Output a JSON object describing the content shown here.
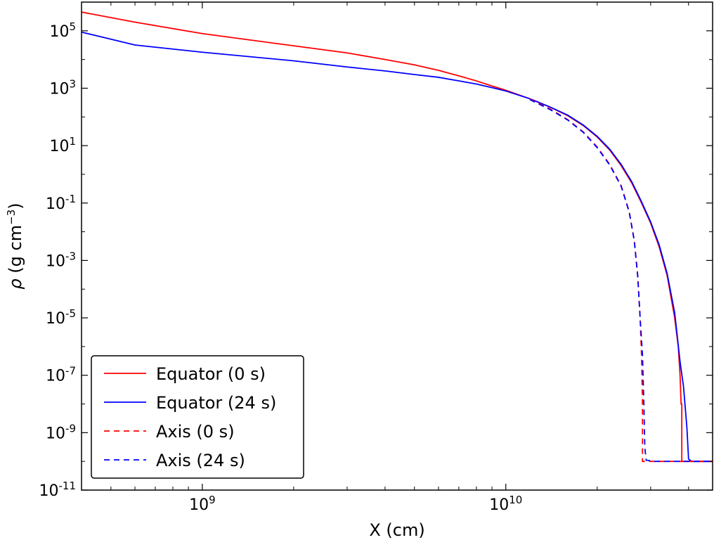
{
  "chart_data": {
    "type": "line",
    "xlabel": "X (cm)",
    "ylabel_symbol": "ρ",
    "ylabel_unit": " (g cm",
    "ylabel_exp": "−3",
    "ylabel_close": ")",
    "xscale": "log",
    "yscale": "log",
    "xlim": [
      400000000.0,
      48000000000.0
    ],
    "ylim": [
      1e-11,
      1000000.0
    ],
    "x_ticks": [
      {
        "value": 1000000000.0,
        "base": "10",
        "exp": "9"
      },
      {
        "value": 10000000000.0,
        "base": "10",
        "exp": "10"
      }
    ],
    "y_ticks": [
      {
        "value": 100000.0,
        "base": "10",
        "exp": "5"
      },
      {
        "value": 1000.0,
        "base": "10",
        "exp": "3"
      },
      {
        "value": 10.0,
        "base": "10",
        "exp": "1"
      },
      {
        "value": 0.1,
        "base": "10",
        "exp": "-1"
      },
      {
        "value": 0.001,
        "base": "10",
        "exp": "-3"
      },
      {
        "value": 1e-05,
        "base": "10",
        "exp": "-5"
      },
      {
        "value": 1e-07,
        "base": "10",
        "exp": "-7"
      },
      {
        "value": 1e-09,
        "base": "10",
        "exp": "-9"
      },
      {
        "value": 1e-11,
        "base": "10",
        "exp": "-11"
      }
    ],
    "grid": false,
    "legend_position": "lower-left",
    "series": [
      {
        "name": "Equator (0 s)",
        "color": "#ff0000",
        "dash": "solid",
        "points": [
          [
            400000000.0,
            450000.0
          ],
          [
            600000000.0,
            200000.0
          ],
          [
            1000000000.0,
            80000.0
          ],
          [
            2000000000.0,
            30000.0
          ],
          [
            3000000000.0,
            17000.0
          ],
          [
            4000000000.0,
            10000.0
          ],
          [
            5000000000.0,
            6500.0
          ],
          [
            6000000000.0,
            4200.0
          ],
          [
            7000000000.0,
            2700.0
          ],
          [
            8000000000.0,
            1800.0
          ],
          [
            9000000000.0,
            1200.0
          ],
          [
            10000000000.0,
            850
          ],
          [
            12000000000.0,
            430
          ],
          [
            14000000000.0,
            220
          ],
          [
            16000000000.0,
            110
          ],
          [
            18000000000.0,
            50
          ],
          [
            20000000000.0,
            20
          ],
          [
            22000000000.0,
            7
          ],
          [
            24000000000.0,
            2
          ],
          [
            26000000000.0,
            0.5
          ],
          [
            28000000000.0,
            0.1
          ],
          [
            30000000000.0,
            0.02
          ],
          [
            32000000000.0,
            0.003
          ],
          [
            34000000000.0,
            0.0003
          ],
          [
            36000000000.0,
            1e-05
          ],
          [
            37000000000.0,
            1e-06
          ],
          [
            37500000000.0,
            1e-07
          ],
          [
            37800000000.0,
            1e-08
          ],
          [
            38000000000.0,
            1e-08
          ],
          [
            38000000000.0,
            1e-10
          ],
          [
            48000000000.0,
            1e-10
          ]
        ]
      },
      {
        "name": "Equator (24 s)",
        "color": "#0000ff",
        "dash": "solid",
        "points": [
          [
            400000000.0,
            90000.0
          ],
          [
            600000000.0,
            32000.0
          ],
          [
            1000000000.0,
            18000.0
          ],
          [
            2000000000.0,
            9000.0
          ],
          [
            3000000000.0,
            5500.0
          ],
          [
            4000000000.0,
            4000.0
          ],
          [
            5000000000.0,
            3000.0
          ],
          [
            6000000000.0,
            2400.0
          ],
          [
            7000000000.0,
            1800.0
          ],
          [
            8000000000.0,
            1400.0
          ],
          [
            9000000000.0,
            1050.0
          ],
          [
            10000000000.0,
            800
          ],
          [
            12000000000.0,
            430
          ],
          [
            14000000000.0,
            220
          ],
          [
            16000000000.0,
            115
          ],
          [
            18000000000.0,
            52
          ],
          [
            20000000000.0,
            21
          ],
          [
            22000000000.0,
            7.5
          ],
          [
            24000000000.0,
            2.2
          ],
          [
            26000000000.0,
            0.55
          ],
          [
            28000000000.0,
            0.11
          ],
          [
            30000000000.0,
            0.022
          ],
          [
            32000000000.0,
            0.0035
          ],
          [
            34000000000.0,
            0.00035
          ],
          [
            36000000000.0,
            1.5e-05
          ],
          [
            37500000000.0,
            3e-07
          ],
          [
            38500000000.0,
            4e-08
          ],
          [
            39500000000.0,
            1.5e-09
          ],
          [
            40000000000.0,
            1.2e-10
          ],
          [
            41000000000.0,
            1e-10
          ],
          [
            48000000000.0,
            1e-10
          ]
        ]
      },
      {
        "name": "Axis (0 s)",
        "color": "#ff0000",
        "dash": "dashed",
        "points": [
          [
            12000000000.0,
            420
          ],
          [
            14000000000.0,
            190
          ],
          [
            16000000000.0,
            80
          ],
          [
            18000000000.0,
            30
          ],
          [
            20000000000.0,
            9
          ],
          [
            22000000000.0,
            2.2
          ],
          [
            24000000000.0,
            0.4
          ],
          [
            25500000000.0,
            0.05
          ],
          [
            26500000000.0,
            0.005
          ],
          [
            27200000000.0,
            0.0003
          ],
          [
            27700000000.0,
            1e-05
          ],
          [
            28000000000.0,
            5e-07
          ],
          [
            28200000000.0,
            1e-08
          ],
          [
            28200000000.0,
            1e-10
          ],
          [
            30000000000.0,
            1e-10
          ],
          [
            48000000000.0,
            1e-10
          ]
        ]
      },
      {
        "name": "Axis (24 s)",
        "color": "#0000ff",
        "dash": "dashed",
        "points": [
          [
            12000000000.0,
            400
          ],
          [
            14000000000.0,
            180
          ],
          [
            16000000000.0,
            78
          ],
          [
            18000000000.0,
            29
          ],
          [
            20000000000.0,
            8.5
          ],
          [
            22000000000.0,
            2.1
          ],
          [
            24000000000.0,
            0.38
          ],
          [
            25500000000.0,
            0.048
          ],
          [
            26500000000.0,
            0.0048
          ],
          [
            27200000000.0,
            0.00028
          ],
          [
            27700000000.0,
            1e-05
          ],
          [
            28200000000.0,
            5e-07
          ],
          [
            28500000000.0,
            1e-08
          ],
          [
            28700000000.0,
            3e-10
          ],
          [
            29000000000.0,
            1.1e-10
          ],
          [
            31000000000.0,
            1e-10
          ],
          [
            48000000000.0,
            1e-10
          ]
        ]
      }
    ]
  }
}
